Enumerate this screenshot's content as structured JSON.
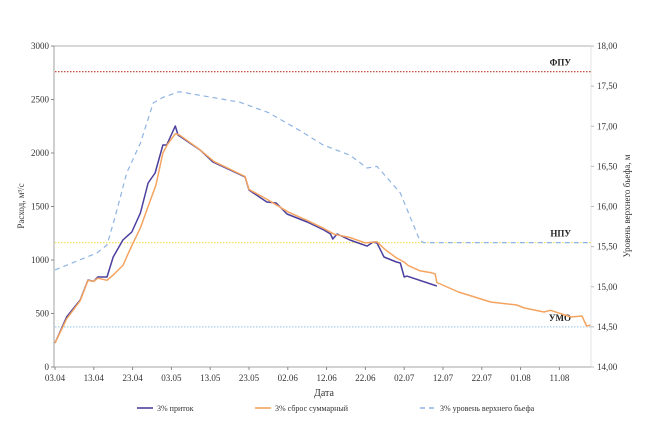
{
  "chart_data": {
    "type": "line",
    "xlabel": "Дата",
    "ylabel": "Расход, м³/с",
    "y2label": "Уровень верхнего бьефа, м",
    "x_tick_labels": [
      "03.04",
      "13.04",
      "23.04",
      "03.05",
      "13.05",
      "23.05",
      "02.06",
      "12.06",
      "22.06",
      "02.07",
      "12.07",
      "22.07",
      "01.08",
      "11.08"
    ],
    "x_unit": "days since 03.04",
    "xlim": [
      0,
      138
    ],
    "ylim": [
      0,
      3000
    ],
    "y_ticks": [
      "0",
      "500",
      "1000",
      "1500",
      "2000",
      "2500",
      "3000"
    ],
    "y2lim": [
      14,
      18
    ],
    "y2_ticks": [
      "14,00",
      "14,50",
      "15,00",
      "15,50",
      "16,00",
      "16,50",
      "17,00",
      "17,50",
      "18,00"
    ],
    "grid": false,
    "legend_position": "bottom",
    "series": [
      {
        "name": "3% приток",
        "axis": "left",
        "color": "#4b3f9e",
        "style": "solid",
        "x": [
          0,
          3,
          6.5,
          8.5,
          10,
          11,
          13.4,
          15,
          17.5,
          19.8,
          22,
          24,
          25.8,
          27.8,
          28.8,
          31,
          31.7,
          37.4,
          40.7,
          49,
          50,
          54.6,
          57,
          59.8,
          65,
          69.3,
          71,
          71.6,
          72.7,
          76,
          80.4,
          82,
          83,
          84.8,
          88,
          89,
          90,
          90.7,
          98.4
        ],
        "values": [
          224,
          467,
          626,
          813,
          800,
          841,
          841,
          1028,
          1187,
          1262,
          1439,
          1720,
          1813,
          2075,
          2075,
          2252,
          2168,
          2028,
          1916,
          1776,
          1654,
          1542,
          1533,
          1430,
          1355,
          1280,
          1243,
          1196,
          1243,
          1187,
          1130,
          1168,
          1159,
          1028,
          981,
          972,
          841,
          850,
          757
        ]
      },
      {
        "name": "3% сброс суммарный",
        "axis": "left",
        "color": "#f4a460",
        "style": "solid",
        "x": [
          0,
          3,
          6.5,
          8.5,
          10,
          11,
          13.4,
          15,
          17.5,
          20,
          22,
          24,
          26,
          27.8,
          29,
          31,
          32,
          37,
          41,
          49,
          50,
          55,
          60,
          65,
          69,
          72,
          76,
          80,
          83,
          85,
          88,
          90,
          91,
          94,
          97,
          98,
          98.4,
          104,
          112.4,
          119,
          121,
          126,
          127.7,
          133,
          135.8,
          137,
          138
        ],
        "values": [
          224,
          450,
          620,
          810,
          800,
          830,
          810,
          860,
          950,
          1150,
          1300,
          1500,
          1700,
          2000,
          2080,
          2180,
          2170,
          2040,
          1920,
          1780,
          1660,
          1560,
          1450,
          1370,
          1300,
          1240,
          1210,
          1160,
          1170,
          1100,
          1020,
          980,
          950,
          900,
          880,
          870,
          790,
          701,
          607,
          579,
          551,
          514,
          530,
          467,
          477,
          383,
          392
        ]
      },
      {
        "name": "3% уровень верхнего бьефа",
        "axis": "right",
        "color": "#8fb4e3",
        "style": "dashed",
        "x": [
          0,
          10.8,
          13.4,
          15.5,
          18.5,
          22,
          25.3,
          27.8,
          32,
          47.6,
          55,
          63,
          69,
          72.7,
          76,
          80.4,
          83,
          89,
          94,
          95,
          138
        ],
        "values": [
          15.21,
          15.42,
          15.52,
          15.87,
          16.42,
          16.79,
          17.29,
          17.36,
          17.43,
          17.3,
          17.17,
          16.95,
          16.77,
          16.7,
          16.64,
          16.48,
          16.5,
          16.17,
          15.58,
          15.55,
          15.55
        ]
      }
    ],
    "reference_lines": [
      {
        "label": "ФПУ",
        "level": 17.68,
        "color": "#c0392b"
      },
      {
        "label": "НПУ",
        "level": 15.55,
        "color": "#f1e05a"
      },
      {
        "label": "УМО",
        "level": 14.5,
        "color": "#a9cfe8"
      }
    ]
  }
}
